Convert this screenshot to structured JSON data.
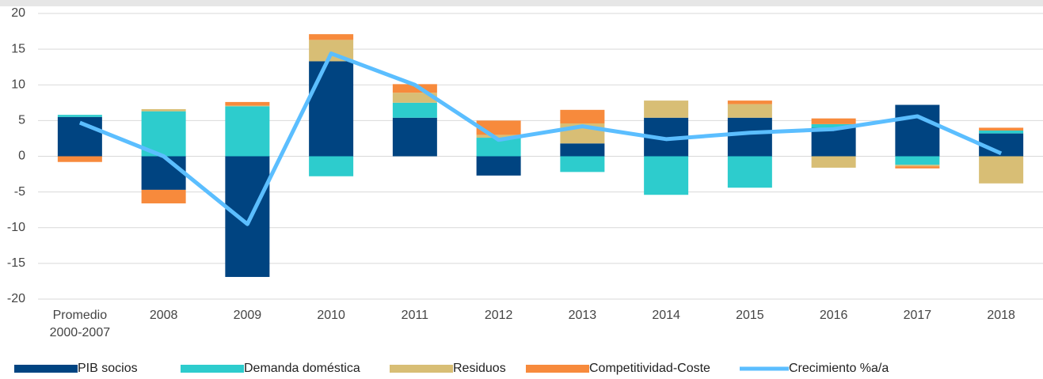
{
  "chart_data": {
    "type": "bar",
    "categories": [
      "Promedio 2000-2007",
      "2008",
      "2009",
      "2010",
      "2011",
      "2012",
      "2013",
      "2014",
      "2015",
      "2016",
      "2017",
      "2018"
    ],
    "series": [
      {
        "name": "PIB socios",
        "color": "#004481",
        "values": [
          5.5,
          -4.7,
          -16.9,
          13.3,
          5.4,
          -2.7,
          1.8,
          5.4,
          5.4,
          4.0,
          7.2,
          3.2
        ]
      },
      {
        "name": "Demanda doméstica",
        "color": "#2dcccd",
        "values": [
          0.3,
          6.3,
          7.0,
          -2.8,
          2.1,
          2.6,
          -2.2,
          -5.4,
          -4.4,
          0.5,
          -1.2,
          0.4
        ]
      },
      {
        "name": "Residuos",
        "color": "#d8be75",
        "values": [
          0,
          0.3,
          0.1,
          3.0,
          1.4,
          0.4,
          2.8,
          2.4,
          1.9,
          -1.6,
          -0.2,
          -3.8
        ]
      },
      {
        "name": "Competitividad-Coste",
        "color": "#f78a3c",
        "values": [
          -0.8,
          -1.9,
          0.5,
          0.8,
          1.2,
          2.0,
          1.9,
          0,
          0.5,
          0.8,
          -0.3,
          0.4
        ]
      },
      {
        "name": "Crecimiento %a/a",
        "color": "#5bbeff",
        "type": "line",
        "values": [
          4.7,
          0,
          -9.5,
          14.4,
          10.0,
          2.3,
          4.2,
          2.4,
          3.3,
          3.8,
          5.6,
          0.4
        ]
      }
    ],
    "ylim": [
      -20,
      20
    ],
    "yticks": [
      -20,
      -15,
      -10,
      -5,
      0,
      5,
      10,
      15,
      20
    ],
    "grid": true,
    "legend": "bottom"
  }
}
